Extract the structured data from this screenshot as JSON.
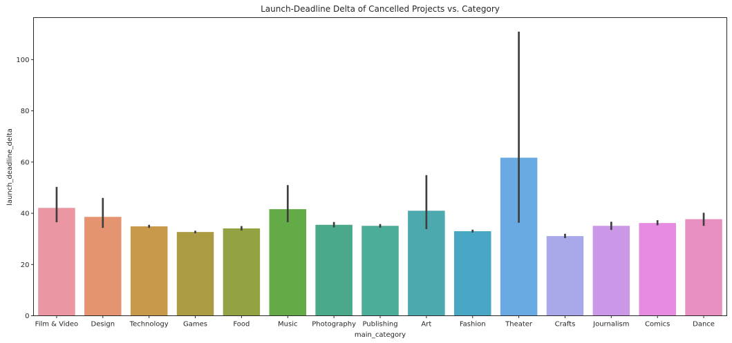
{
  "chart_data": {
    "type": "bar",
    "title": "Launch-Deadline Delta of Cancelled Projects vs. Category",
    "xlabel": "main_category",
    "ylabel": "launch_deadline_delta",
    "ylim": [
      0,
      116.4
    ],
    "yticks": [
      0,
      20,
      40,
      60,
      80,
      100
    ],
    "grid": false,
    "legend": "none",
    "categories": [
      "Film & Video",
      "Design",
      "Technology",
      "Games",
      "Food",
      "Music",
      "Photography",
      "Publishing",
      "Art",
      "Fashion",
      "Theater",
      "Crafts",
      "Journalism",
      "Comics",
      "Dance"
    ],
    "values": [
      42.1,
      38.6,
      34.9,
      32.7,
      34.1,
      41.6,
      35.5,
      35.1,
      41.0,
      33.0,
      61.7,
      31.1,
      35.1,
      36.2,
      37.7
    ],
    "error_low": [
      36.5,
      34.3,
      34.3,
      32.2,
      33.3,
      36.5,
      34.5,
      34.4,
      33.8,
      32.5,
      36.3,
      30.3,
      33.5,
      35.3,
      35.1
    ],
    "error_high": [
      50.3,
      46.0,
      35.5,
      33.2,
      35.0,
      51.0,
      36.6,
      35.8,
      54.9,
      33.6,
      110.9,
      32.0,
      36.7,
      37.3,
      40.2
    ],
    "colors": [
      "#ea96a3",
      "#e59471",
      "#c8984b",
      "#ab9c44",
      "#93a344",
      "#62ab46",
      "#4aa98a",
      "#4cad98",
      "#4ca9ad",
      "#48a7c4",
      "#68aae1",
      "#a9a9ea",
      "#cb97e7",
      "#e58ce0",
      "#e88fc2"
    ],
    "error_color": "#3f3f3f"
  }
}
